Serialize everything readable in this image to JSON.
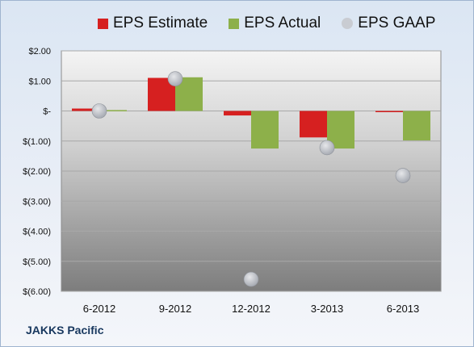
{
  "legend": {
    "estimate_label": "EPS Estimate",
    "actual_label": "EPS Actual",
    "gaap_label": "EPS GAAP"
  },
  "company": "JAKKS Pacific",
  "colors": {
    "estimate": "#d62020",
    "actual": "#8db04a",
    "gaap": "#c9ccd2"
  },
  "chart_data": {
    "type": "bar",
    "title": "",
    "xlabel": "",
    "ylabel": "",
    "categories": [
      "6-2012",
      "9-2012",
      "12-2012",
      "3-2013",
      "6-2013"
    ],
    "series": [
      {
        "name": "EPS Estimate",
        "type": "bar",
        "values": [
          0.08,
          1.1,
          -0.15,
          -0.88,
          -0.02
        ]
      },
      {
        "name": "EPS Actual",
        "type": "bar",
        "values": [
          0.03,
          1.12,
          -1.25,
          -1.25,
          -0.98
        ]
      },
      {
        "name": "EPS GAAP",
        "type": "scatter",
        "values": [
          0.0,
          1.07,
          -5.6,
          -1.22,
          -2.15
        ]
      }
    ],
    "ylim": [
      -6,
      2
    ],
    "yticks": [
      2,
      1,
      0,
      -1,
      -2,
      -3,
      -4,
      -5,
      -6
    ],
    "ytick_labels": [
      "$2.00",
      "$1.00",
      "$-",
      "$(1.00)",
      "$(2.00)",
      "$(3.00)",
      "$(4.00)",
      "$(5.00)",
      "$(6.00)"
    ],
    "grid": true,
    "legend_position": "top"
  }
}
